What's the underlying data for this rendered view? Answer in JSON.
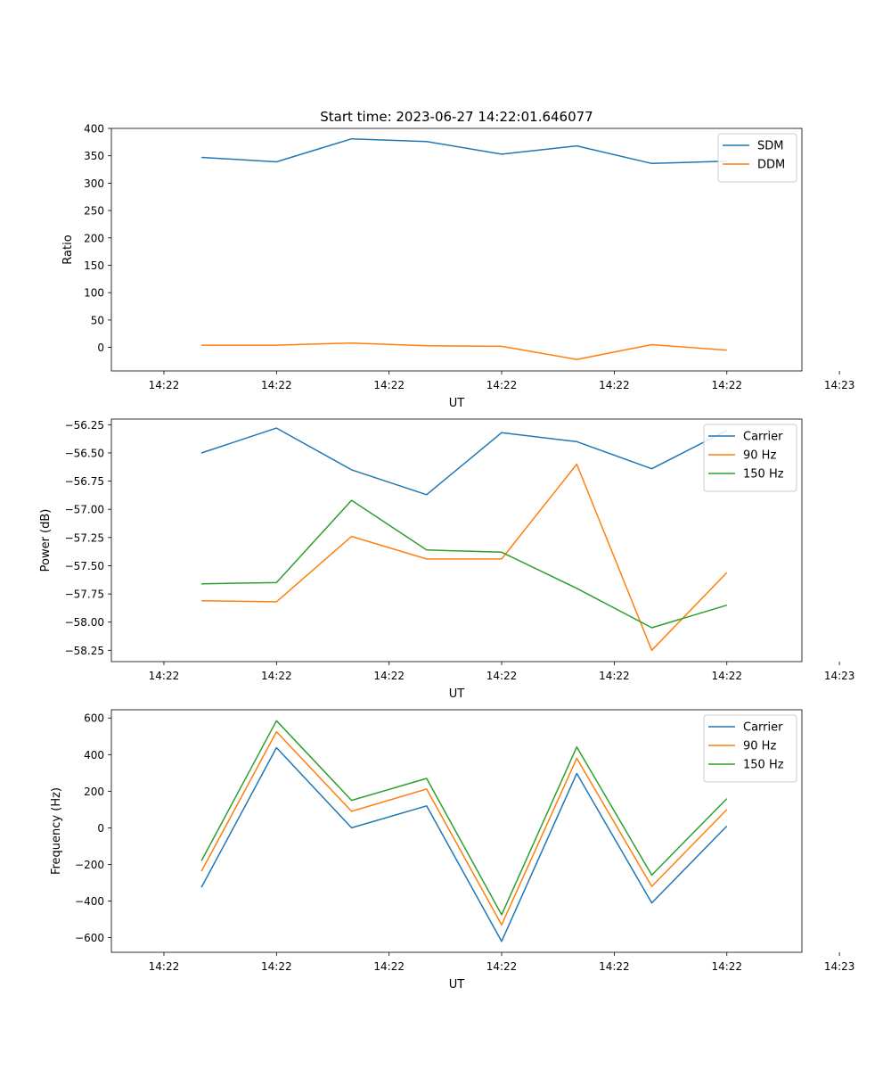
{
  "figure": {
    "title": "Start time: 2023-06-27 14:22:01.646077"
  },
  "chart_data": [
    {
      "type": "line",
      "xlabel": "UT",
      "ylabel": "Ratio",
      "x": [
        1.5,
        2.5,
        3.5,
        4.5,
        5.5,
        6.5,
        7.5,
        8.5
      ],
      "xlim": [
        0.3,
        9.5
      ],
      "xticks": [
        1,
        2.5,
        4,
        5.5,
        7,
        8.5,
        10
      ],
      "xtick_labels": [
        "14:22",
        "14:22",
        "14:22",
        "14:22",
        "14:22",
        "14:22",
        "14:23"
      ],
      "ylim": [
        -43,
        400
      ],
      "yticks": [
        0,
        50,
        100,
        150,
        200,
        250,
        300,
        350,
        400
      ],
      "legend_position": "top-right",
      "series": [
        {
          "name": "SDM",
          "color": "#1f77b4",
          "values": [
            347,
            339,
            381,
            376,
            353,
            368,
            336,
            340
          ]
        },
        {
          "name": "DDM",
          "color": "#ff7f0e",
          "values": [
            4,
            4,
            8,
            3,
            2,
            -22,
            5,
            -5
          ]
        }
      ]
    },
    {
      "type": "line",
      "xlabel": "UT",
      "ylabel": "Power (dB)",
      "x": [
        1.5,
        2.5,
        3.5,
        4.5,
        5.5,
        6.5,
        7.5,
        8.5
      ],
      "xlim": [
        0.3,
        9.5
      ],
      "xticks": [
        1,
        2.5,
        4,
        5.5,
        7,
        8.5,
        10
      ],
      "xtick_labels": [
        "14:22",
        "14:22",
        "14:22",
        "14:22",
        "14:22",
        "14:22",
        "14:23"
      ],
      "ylim": [
        -58.35,
        -56.2
      ],
      "yticks": [
        -58.25,
        -58.0,
        -57.75,
        -57.5,
        -57.25,
        -57.0,
        -56.75,
        -56.5,
        -56.25
      ],
      "ytick_labels": [
        "−58.25",
        "−58.00",
        "−57.75",
        "−57.50",
        "−57.25",
        "−57.00",
        "−56.75",
        "−56.50",
        "−56.25"
      ],
      "legend_position": "top-right",
      "series": [
        {
          "name": "Carrier",
          "color": "#1f77b4",
          "values": [
            -56.5,
            -56.28,
            -56.65,
            -56.87,
            -56.32,
            -56.4,
            -56.64,
            -56.3
          ]
        },
        {
          "name": "90 Hz",
          "color": "#ff7f0e",
          "values": [
            -57.81,
            -57.82,
            -57.24,
            -57.44,
            -57.44,
            -56.6,
            -58.25,
            -57.56
          ]
        },
        {
          "name": "150 Hz",
          "color": "#2ca02c",
          "values": [
            -57.66,
            -57.65,
            -56.92,
            -57.36,
            -57.38,
            -57.7,
            -58.05,
            -57.85
          ]
        }
      ]
    },
    {
      "type": "line",
      "xlabel": "UT",
      "ylabel": "Frequency (Hz)",
      "x": [
        1.5,
        2.5,
        3.5,
        4.5,
        5.5,
        6.5,
        7.5,
        8.5
      ],
      "xlim": [
        0.3,
        9.5
      ],
      "xticks": [
        1,
        2.5,
        4,
        5.5,
        7,
        8.5,
        10
      ],
      "xtick_labels": [
        "14:22",
        "14:22",
        "14:22",
        "14:22",
        "14:22",
        "14:22",
        "14:23"
      ],
      "ylim": [
        -680,
        645
      ],
      "yticks": [
        -600,
        -400,
        -200,
        0,
        200,
        400,
        600
      ],
      "ytick_labels": [
        "−600",
        "−400",
        "−200",
        "0",
        "200",
        "400",
        "600"
      ],
      "legend_position": "top-right",
      "series": [
        {
          "name": "Carrier",
          "color": "#1f77b4",
          "values": [
            -325,
            438,
            0,
            120,
            -620,
            297,
            -410,
            10
          ]
        },
        {
          "name": "90 Hz",
          "color": "#ff7f0e",
          "values": [
            -237,
            525,
            90,
            212,
            -530,
            380,
            -320,
            100
          ]
        },
        {
          "name": "150 Hz",
          "color": "#2ca02c",
          "values": [
            -180,
            585,
            150,
            270,
            -475,
            442,
            -258,
            160
          ]
        }
      ]
    }
  ]
}
